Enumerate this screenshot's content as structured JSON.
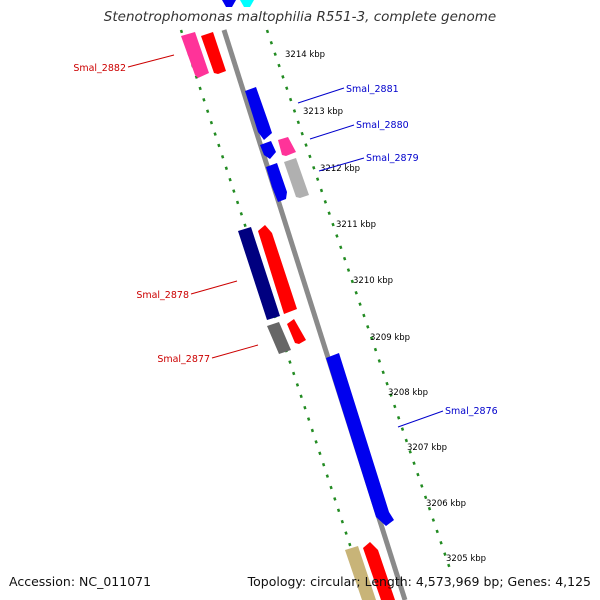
{
  "title": "Stenotrophomonas maltophilia R551-3, complete genome",
  "footer": {
    "accession": "Accession: NC_011071",
    "topology": "Topology: circular; Length: 4,573,969 bp; Genes: 4,125"
  },
  "colors": {
    "backbone": "#8a8a8a",
    "tick": "#228b22",
    "forward_label": "#0000cc",
    "reverse_label": "#cc0000",
    "gene_blue": "#0000ee",
    "gene_red": "#ff0000",
    "gene_pink": "#ff3399",
    "gene_navy": "#000080",
    "gene_grey": "#666666",
    "gene_silver": "#b0b0b0",
    "gene_cyan": "#00ffff",
    "gene_khaki": "#c8b478"
  },
  "kbp_labels": [
    "3214 kbp",
    "3213 kbp",
    "3212 kbp",
    "3211 kbp",
    "3210 kbp",
    "3209 kbp",
    "3208 kbp",
    "3207 kbp",
    "3206 kbp",
    "3205 kbp"
  ],
  "gene_labels": [
    {
      "text": "Smal_2882",
      "strand": "reverse"
    },
    {
      "text": "Smal_2881",
      "strand": "forward"
    },
    {
      "text": "Smal_2880",
      "strand": "forward"
    },
    {
      "text": "Smal_2879",
      "strand": "forward"
    },
    {
      "text": "Smal_2878",
      "strand": "reverse"
    },
    {
      "text": "Smal_2877",
      "strand": "reverse"
    },
    {
      "text": "Smal_2876",
      "strand": "forward"
    }
  ]
}
